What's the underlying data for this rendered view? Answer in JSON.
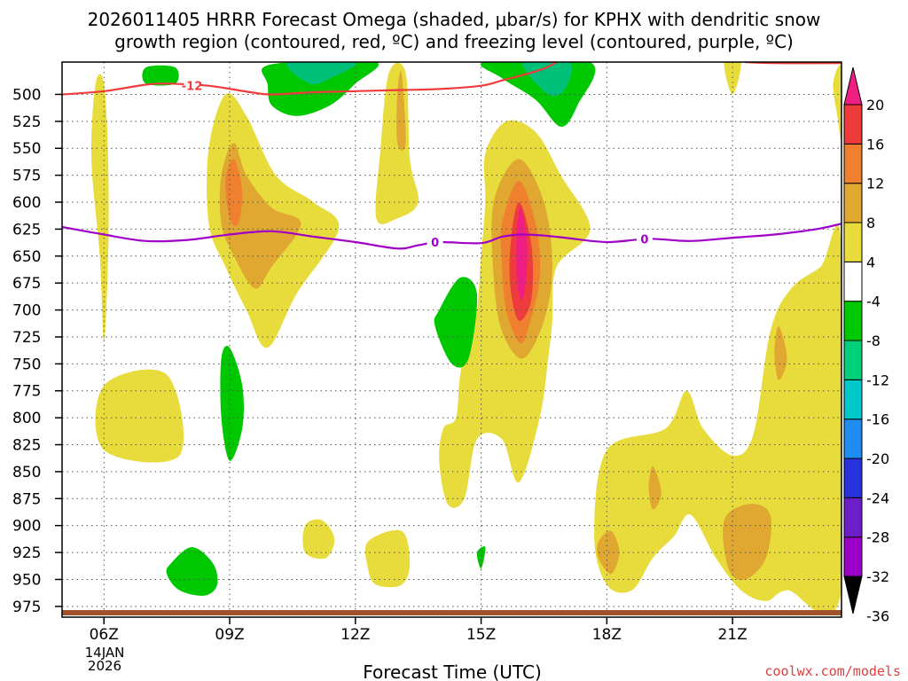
{
  "chart_data": {
    "type": "heatmap",
    "title_line1": "2026011405 HRRR Forecast Omega (shaded, μbar/s) for KPHX with dendritic snow",
    "title_line2": "growth region (contoured, red, ºC) and freezing level (contoured, purple, ºC)",
    "xlabel": "Forecast Time (UTC)",
    "ylabel": "",
    "credit": "coolwx.com/models",
    "x_range_hours": [
      5.0,
      23.6
    ],
    "y_range_hpa": [
      985,
      470
    ],
    "x_ticks": [
      {
        "hour": 6,
        "label": "06Z"
      },
      {
        "hour": 9,
        "label": "09Z"
      },
      {
        "hour": 12,
        "label": "12Z"
      },
      {
        "hour": 15,
        "label": "15Z"
      },
      {
        "hour": 18,
        "label": "18Z"
      },
      {
        "hour": 21,
        "label": "21Z"
      }
    ],
    "date_label_line1": "14JAN",
    "date_label_line2": "2026",
    "y_ticks": [
      500,
      525,
      550,
      575,
      600,
      625,
      650,
      675,
      700,
      725,
      750,
      775,
      800,
      825,
      850,
      875,
      900,
      925,
      950,
      975
    ],
    "colorbar": {
      "levels": [
        -36,
        -32,
        -28,
        -24,
        -20,
        -16,
        -12,
        -8,
        -4,
        4,
        8,
        12,
        16,
        20
      ],
      "labels": [
        "20",
        "16",
        "12",
        "8",
        "4",
        "-4",
        "-8",
        "-12",
        "-16",
        "-20",
        "-24",
        "-28",
        "-32",
        "-36"
      ],
      "colors": [
        "#a0a0a0",
        "#9c00c8",
        "#6e1ec8",
        "#2832dc",
        "#1e8cf0",
        "#00c8c8",
        "#00d07a",
        "#00c800",
        "#ffffff",
        "#e8dc3c",
        "#e0a830",
        "#ee8030",
        "#ee3c3c",
        "#ee1e82"
      ]
    },
    "shaded_regions": [
      {
        "level": 4,
        "color": "#e8dc3c",
        "outline": [
          [
            6.0,
            490
          ],
          [
            6.1,
            560
          ],
          [
            6.1,
            650
          ],
          [
            6.0,
            730
          ],
          [
            5.9,
            650
          ],
          [
            5.7,
            560
          ],
          [
            5.8,
            490
          ]
        ]
      },
      {
        "level": 4,
        "color": "#e8dc3c",
        "outline": [
          [
            6.0,
            770
          ],
          [
            7.5,
            760
          ],
          [
            7.8,
            835
          ],
          [
            6.0,
            830
          ]
        ]
      },
      {
        "level": 4,
        "color": "#e8dc3c",
        "outline": [
          [
            8.5,
            550
          ],
          [
            8.9,
            500
          ],
          [
            9.4,
            520
          ],
          [
            10.1,
            575
          ],
          [
            11.0,
            600
          ],
          [
            11.6,
            625
          ],
          [
            10.6,
            685
          ],
          [
            9.9,
            735
          ],
          [
            9.4,
            700
          ],
          [
            8.9,
            660
          ],
          [
            8.5,
            620
          ]
        ]
      },
      {
        "level": 4,
        "color": "#e8dc3c",
        "outline": [
          [
            12.8,
            480
          ],
          [
            13.2,
            480
          ],
          [
            13.3,
            560
          ],
          [
            13.5,
            600
          ],
          [
            13.0,
            615
          ],
          [
            12.5,
            615
          ],
          [
            12.6,
            550
          ]
        ]
      },
      {
        "level": 4,
        "color": "#e8dc3c",
        "outline": [
          [
            15.1,
            555
          ],
          [
            15.6,
            525
          ],
          [
            16.3,
            535
          ],
          [
            16.9,
            575
          ],
          [
            17.6,
            625
          ],
          [
            16.8,
            660
          ],
          [
            16.7,
            710
          ],
          [
            16.6,
            745
          ],
          [
            16.4,
            800
          ],
          [
            15.9,
            860
          ],
          [
            15.5,
            820
          ],
          [
            14.9,
            820
          ],
          [
            14.6,
            875
          ],
          [
            14.2,
            880
          ],
          [
            14.0,
            840
          ],
          [
            14.1,
            810
          ],
          [
            14.4,
            800
          ],
          [
            14.5,
            760
          ],
          [
            14.7,
            730
          ],
          [
            14.9,
            700
          ],
          [
            15.0,
            650
          ],
          [
            15.1,
            600
          ]
        ]
      },
      {
        "level": 4,
        "color": "#e8dc3c",
        "outline": [
          [
            18.0,
            830
          ],
          [
            19.4,
            810
          ],
          [
            19.9,
            775
          ],
          [
            20.3,
            810
          ],
          [
            21.0,
            835
          ],
          [
            21.5,
            815
          ],
          [
            21.9,
            720
          ],
          [
            22.4,
            680
          ],
          [
            23.1,
            660
          ],
          [
            23.6,
            640
          ],
          [
            23.6,
            960
          ],
          [
            22.3,
            960
          ],
          [
            21.8,
            970
          ],
          [
            21.2,
            960
          ],
          [
            20.6,
            930
          ],
          [
            20.0,
            890
          ],
          [
            19.6,
            910
          ],
          [
            19.1,
            930
          ],
          [
            18.6,
            960
          ],
          [
            18.0,
            955
          ],
          [
            17.7,
            910
          ]
        ]
      },
      {
        "level": 4,
        "color": "#e8dc3c",
        "outline": [
          [
            23.6,
            475
          ],
          [
            23.4,
            490
          ],
          [
            23.5,
            520
          ],
          [
            23.6,
            540
          ]
        ]
      },
      {
        "level": 4,
        "color": "#e8dc3c",
        "outline": [
          [
            12.3,
            915
          ],
          [
            13.1,
            905
          ],
          [
            13.3,
            935
          ],
          [
            13.1,
            955
          ],
          [
            12.5,
            955
          ],
          [
            12.3,
            940
          ]
        ]
      },
      {
        "level": 4,
        "color": "#e8dc3c",
        "outline": [
          [
            10.8,
            900
          ],
          [
            11.2,
            895
          ],
          [
            11.5,
            912
          ],
          [
            11.3,
            930
          ],
          [
            10.8,
            925
          ]
        ]
      },
      {
        "level": 4,
        "color": "#e8dc3c",
        "outline": [
          [
            20.8,
            470
          ],
          [
            21.2,
            470
          ],
          [
            21.0,
            500
          ]
        ]
      },
      {
        "level": 8,
        "color": "#e0a830",
        "outline": [
          [
            8.8,
            575
          ],
          [
            9.1,
            545
          ],
          [
            9.4,
            575
          ],
          [
            10.0,
            605
          ],
          [
            10.7,
            620
          ],
          [
            10.0,
            660
          ],
          [
            9.6,
            680
          ],
          [
            9.1,
            650
          ],
          [
            8.8,
            620
          ]
        ]
      },
      {
        "level": 8,
        "color": "#e0a830",
        "outline": [
          [
            15.3,
            600
          ],
          [
            15.9,
            560
          ],
          [
            16.5,
            600
          ],
          [
            16.7,
            660
          ],
          [
            16.5,
            710
          ],
          [
            16.0,
            745
          ],
          [
            15.5,
            720
          ],
          [
            15.3,
            670
          ]
        ]
      },
      {
        "level": 8,
        "color": "#e0a830",
        "outline": [
          [
            13.0,
            500
          ],
          [
            13.1,
            480
          ],
          [
            13.2,
            545
          ],
          [
            13.0,
            545
          ]
        ]
      },
      {
        "level": 8,
        "color": "#e0a830",
        "outline": [
          [
            20.8,
            895
          ],
          [
            21.4,
            880
          ],
          [
            21.9,
            890
          ],
          [
            21.8,
            930
          ],
          [
            21.3,
            950
          ],
          [
            20.9,
            940
          ]
        ]
      },
      {
        "level": 8,
        "color": "#e0a830",
        "outline": [
          [
            17.8,
            915
          ],
          [
            18.1,
            905
          ],
          [
            18.3,
            925
          ],
          [
            18.1,
            945
          ],
          [
            17.8,
            930
          ]
        ]
      },
      {
        "level": 8,
        "color": "#e0a830",
        "outline": [
          [
            22.0,
            740
          ],
          [
            22.1,
            715
          ],
          [
            22.3,
            745
          ],
          [
            22.1,
            765
          ]
        ]
      },
      {
        "level": 8,
        "color": "#e0a830",
        "outline": [
          [
            19.0,
            865
          ],
          [
            19.1,
            845
          ],
          [
            19.3,
            870
          ],
          [
            19.1,
            885
          ]
        ]
      },
      {
        "level": 12,
        "color": "#ee8030",
        "outline": [
          [
            8.9,
            580
          ],
          [
            9.1,
            560
          ],
          [
            9.3,
            590
          ],
          [
            9.2,
            620
          ],
          [
            9.0,
            615
          ]
        ]
      },
      {
        "level": 12,
        "color": "#ee8030",
        "outline": [
          [
            15.5,
            620
          ],
          [
            15.9,
            580
          ],
          [
            16.3,
            620
          ],
          [
            16.4,
            670
          ],
          [
            16.1,
            720
          ],
          [
            15.9,
            730
          ],
          [
            15.6,
            700
          ],
          [
            15.5,
            660
          ]
        ]
      },
      {
        "level": 16,
        "color": "#ee3c3c",
        "outline": [
          [
            15.7,
            640
          ],
          [
            15.9,
            600
          ],
          [
            16.2,
            640
          ],
          [
            16.2,
            690
          ],
          [
            15.9,
            710
          ],
          [
            15.7,
            680
          ]
        ]
      },
      {
        "level": 20,
        "color": "#ee1e82",
        "outline": [
          [
            15.85,
            630
          ],
          [
            15.95,
            605
          ],
          [
            16.1,
            640
          ],
          [
            16.05,
            680
          ],
          [
            15.95,
            690
          ],
          [
            15.85,
            670
          ]
        ]
      },
      {
        "level": -4,
        "color": "#00c800",
        "outline": [
          [
            9.8,
            475
          ],
          [
            10.6,
            470
          ],
          [
            12.5,
            470
          ],
          [
            12.0,
            490
          ],
          [
            11.4,
            510
          ],
          [
            10.6,
            520
          ],
          [
            10.0,
            510
          ],
          [
            9.9,
            490
          ]
        ]
      },
      {
        "level": -4,
        "color": "#00c800",
        "outline": [
          [
            7.0,
            475
          ],
          [
            7.7,
            475
          ],
          [
            7.7,
            490
          ],
          [
            7.0,
            490
          ]
        ]
      },
      {
        "level": -4,
        "color": "#00c800",
        "outline": [
          [
            15.1,
            470
          ],
          [
            17.6,
            470
          ],
          [
            17.3,
            510
          ],
          [
            16.9,
            530
          ],
          [
            16.3,
            505
          ],
          [
            15.5,
            485
          ]
        ]
      },
      {
        "level": -4,
        "color": "#00c800",
        "outline": [
          [
            14.5,
            670
          ],
          [
            14.9,
            685
          ],
          [
            14.7,
            745
          ],
          [
            14.3,
            750
          ],
          [
            13.9,
            715
          ],
          [
            14.0,
            700
          ]
        ]
      },
      {
        "level": -4,
        "color": "#00c800",
        "outline": [
          [
            8.8,
            745
          ],
          [
            9.0,
            735
          ],
          [
            9.3,
            770
          ],
          [
            9.3,
            810
          ],
          [
            9.0,
            840
          ],
          [
            8.8,
            800
          ]
        ]
      },
      {
        "level": -4,
        "color": "#00c800",
        "outline": [
          [
            7.6,
            935
          ],
          [
            8.1,
            920
          ],
          [
            8.6,
            935
          ],
          [
            8.7,
            955
          ],
          [
            8.4,
            965
          ],
          [
            7.8,
            960
          ],
          [
            7.5,
            945
          ]
        ]
      },
      {
        "level": -4,
        "color": "#00c800",
        "outline": [
          [
            14.9,
            925
          ],
          [
            15.1,
            920
          ],
          [
            15.0,
            940
          ]
        ]
      },
      {
        "level": -8,
        "color": "#00c07a",
        "outline": [
          [
            10.4,
            470
          ],
          [
            12.0,
            470
          ],
          [
            11.4,
            485
          ],
          [
            10.9,
            490
          ]
        ]
      },
      {
        "level": -8,
        "color": "#00c07a",
        "outline": [
          [
            16.0,
            470
          ],
          [
            17.1,
            470
          ],
          [
            17.0,
            495
          ],
          [
            16.6,
            500
          ]
        ]
      }
    ],
    "contours": [
      {
        "name": "dendritic_minus12",
        "color": "#ee3c3c",
        "label": "-12",
        "points": [
          [
            5.0,
            500
          ],
          [
            6.0,
            497
          ],
          [
            7.0,
            491
          ],
          [
            7.5,
            490
          ],
          [
            8.5,
            492
          ],
          [
            9.5,
            498
          ],
          [
            10.0,
            500
          ],
          [
            11.0,
            498
          ],
          [
            12.0,
            497
          ],
          [
            13.0,
            496
          ],
          [
            14.0,
            495
          ],
          [
            15.0,
            492
          ],
          [
            15.5,
            487
          ],
          [
            16.0,
            482
          ],
          [
            16.5,
            476
          ],
          [
            16.8,
            470
          ]
        ]
      },
      {
        "name": "dendritic_minus12_b",
        "color": "#ee3c3c",
        "label": "",
        "points": [
          [
            21.3,
            470
          ],
          [
            22.0,
            471
          ],
          [
            23.6,
            471
          ]
        ]
      },
      {
        "name": "freezing_level_0",
        "color": "#a000c8",
        "label": "0",
        "points": [
          [
            5.0,
            623
          ],
          [
            6.0,
            630
          ],
          [
            7.0,
            636
          ],
          [
            8.0,
            635
          ],
          [
            9.0,
            630
          ],
          [
            10.0,
            627
          ],
          [
            11.0,
            632
          ],
          [
            12.0,
            637
          ],
          [
            13.0,
            643
          ],
          [
            13.5,
            640
          ],
          [
            14.0,
            637
          ],
          [
            15.0,
            638
          ],
          [
            15.5,
            632
          ],
          [
            16.0,
            630
          ],
          [
            16.5,
            631
          ],
          [
            17.0,
            633
          ],
          [
            18.0,
            637
          ],
          [
            19.0,
            634
          ],
          [
            20.0,
            636
          ],
          [
            21.0,
            633
          ],
          [
            22.0,
            630
          ],
          [
            23.0,
            625
          ],
          [
            23.6,
            620
          ]
        ]
      }
    ],
    "surface_color": "#a0522d"
  }
}
